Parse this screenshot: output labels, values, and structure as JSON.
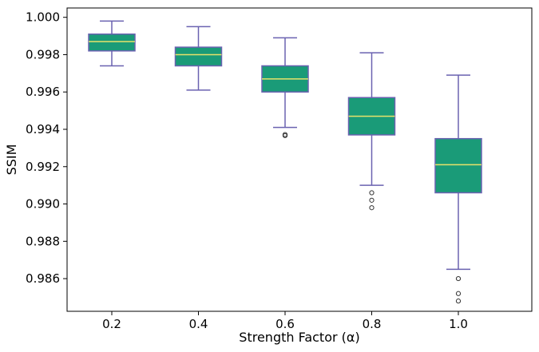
{
  "chart_data": {
    "type": "box",
    "xlabel": "Strength Factor (α)",
    "ylabel": "SSIM",
    "ylim": [
      0.98425,
      1.0005
    ],
    "yticks": [
      "0.986",
      "0.988",
      "0.990",
      "0.992",
      "0.994",
      "0.996",
      "0.998",
      "1.000"
    ],
    "ytick_values": [
      0.986,
      0.988,
      0.99,
      0.992,
      0.994,
      0.996,
      0.998,
      1.0
    ],
    "categories": [
      "0.2",
      "0.4",
      "0.6",
      "0.8",
      "1.0"
    ],
    "boxes": [
      {
        "category": "0.2",
        "whisker_low": 0.9974,
        "q1": 0.9982,
        "median": 0.9987,
        "q3": 0.9991,
        "whisker_high": 0.9998,
        "outliers": []
      },
      {
        "category": "0.4",
        "whisker_low": 0.9961,
        "q1": 0.9974,
        "median": 0.998,
        "q3": 0.9984,
        "whisker_high": 0.9995,
        "outliers": []
      },
      {
        "category": "0.6",
        "whisker_low": 0.9941,
        "q1": 0.996,
        "median": 0.9967,
        "q3": 0.9974,
        "whisker_high": 0.9989,
        "outliers": [
          0.99372,
          0.99366
        ]
      },
      {
        "category": "0.8",
        "whisker_low": 0.991,
        "q1": 0.9937,
        "median": 0.9947,
        "q3": 0.9957,
        "whisker_high": 0.9981,
        "outliers": [
          0.9906,
          0.9902,
          0.9898
        ]
      },
      {
        "category": "1.0",
        "whisker_low": 0.9865,
        "q1": 0.9906,
        "median": 0.9921,
        "q3": 0.9935,
        "whisker_high": 0.9969,
        "outliers": [
          0.986,
          0.9852,
          0.9848
        ]
      }
    ],
    "colors": {
      "box_fill": "#1a9b78",
      "box_edge": "#6a62b0",
      "whisker": "#6a62b0",
      "median": "#e8e26a",
      "outlier_edge": "#333333"
    },
    "grid": false,
    "legend": "none"
  }
}
